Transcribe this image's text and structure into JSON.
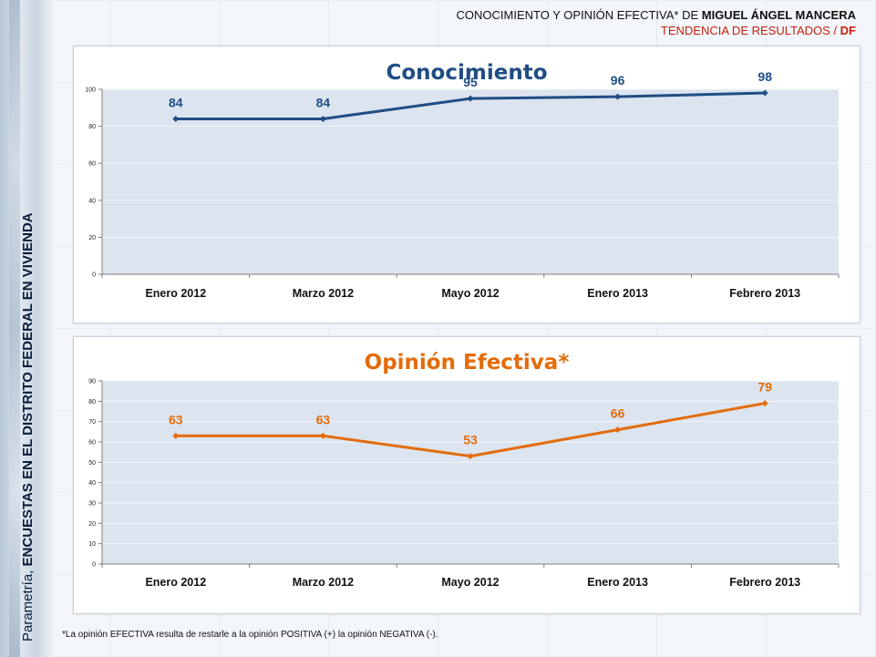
{
  "header": {
    "title_prefix": "CONOCIMIENTO Y OPINIÓN EFECTIVA* DE ",
    "title_name": "MIGUEL ÁNGEL MANCERA",
    "subtitle_prefix": "TENDENCIA DE RESULTADOS / ",
    "subtitle_bold": "DF"
  },
  "side": {
    "prefix": "Parametría, ",
    "bold": "ENCUESTAS EN EL DISTRITO FEDERAL EN VIVIENDA"
  },
  "footnote": "*La opinión EFECTIVA resulta de restarle a la opinión POSITIVA (+) la opinión NEGATIVA (-).",
  "colors": {
    "series1": "#1f4e85",
    "series2": "#e36c0a",
    "plot_bg": "#dce4ef"
  },
  "chart_data": [
    {
      "type": "line",
      "title": "Conocimiento",
      "categories": [
        "Enero 2012",
        "Marzo 2012",
        "Mayo 2012",
        "Enero 2013",
        "Febrero 2013"
      ],
      "values": [
        84,
        84,
        95,
        96,
        98
      ],
      "ylim": [
        0,
        100
      ],
      "yticks": [
        0,
        20,
        40,
        60,
        80,
        100
      ],
      "color": "#1f4e85",
      "grid": true
    },
    {
      "type": "line",
      "title": "Opinión Efectiva*",
      "categories": [
        "Enero 2012",
        "Marzo 2012",
        "Mayo 2012",
        "Enero 2013",
        "Febrero 2013"
      ],
      "values": [
        63,
        63,
        53,
        66,
        79
      ],
      "ylim": [
        0,
        90
      ],
      "yticks": [
        0,
        10,
        20,
        30,
        40,
        50,
        60,
        70,
        80,
        90
      ],
      "color": "#e36c0a",
      "grid": true
    }
  ]
}
